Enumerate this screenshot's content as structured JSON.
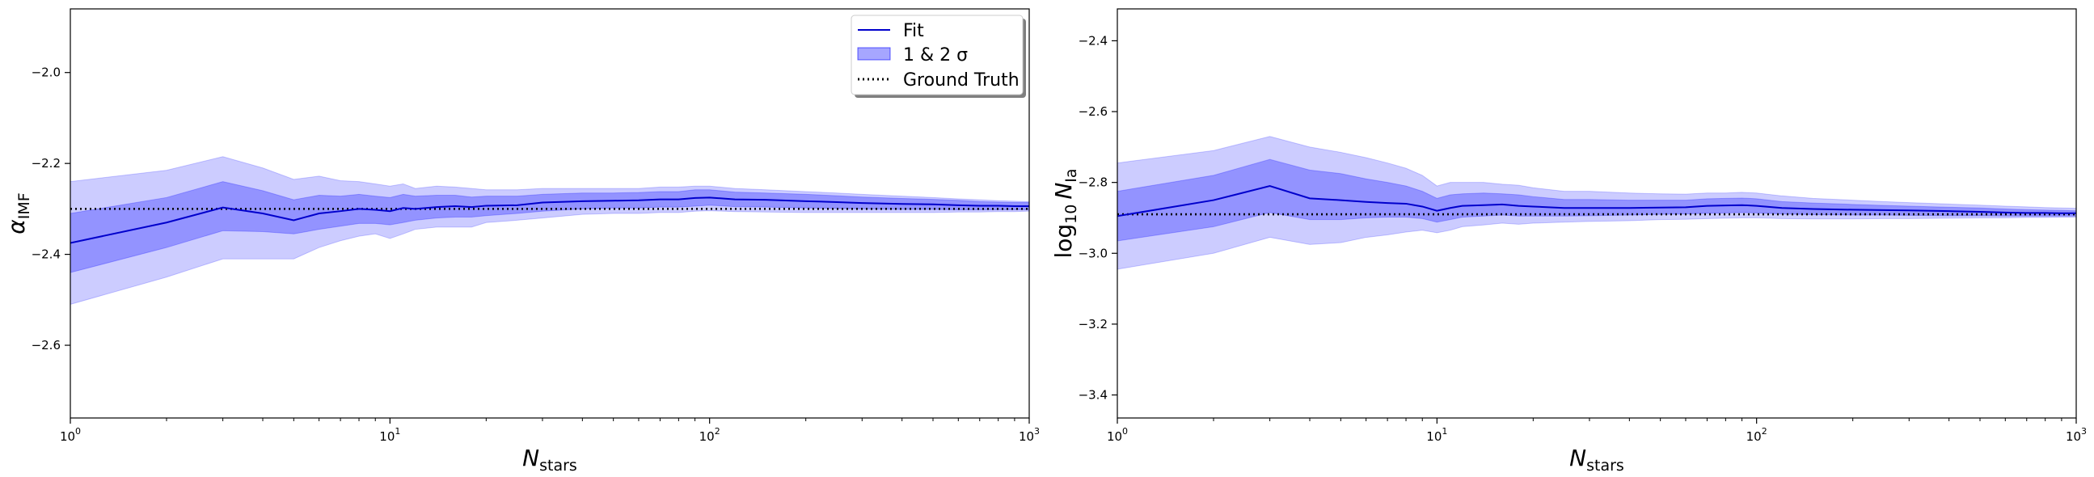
{
  "chart_data": [
    {
      "type": "line",
      "panel": "left",
      "xlabel": "N",
      "xlabel_sub": "stars",
      "ylabel": "α",
      "ylabel_sub": "IMF",
      "xscale": "log",
      "xlim": [
        1,
        1000
      ],
      "ylim": [
        -2.76,
        -1.86
      ],
      "xticks": [
        {
          "value": 1,
          "base": "10",
          "exp": "0"
        },
        {
          "value": 10,
          "base": "10",
          "exp": "1"
        },
        {
          "value": 100,
          "base": "10",
          "exp": "2"
        },
        {
          "value": 1000,
          "base": "10",
          "exp": "3"
        }
      ],
      "yticks": [
        {
          "value": -2.0,
          "label": "−2.0"
        },
        {
          "value": -2.2,
          "label": "−2.2"
        },
        {
          "value": -2.4,
          "label": "−2.4"
        },
        {
          "value": -2.6,
          "label": "−2.6"
        }
      ],
      "ground_truth": -2.3,
      "x": [
        1,
        2,
        3,
        4,
        5,
        6,
        7,
        8,
        9,
        10,
        11,
        12,
        14,
        16,
        18,
        20,
        25,
        30,
        40,
        50,
        60,
        70,
        80,
        90,
        100,
        120,
        150,
        200,
        250,
        300,
        400,
        500,
        600,
        700,
        800,
        900,
        1000
      ],
      "fit": [
        -2.375,
        -2.33,
        -2.297,
        -2.31,
        -2.325,
        -2.31,
        -2.305,
        -2.3,
        -2.302,
        -2.305,
        -2.298,
        -2.3,
        -2.296,
        -2.294,
        -2.296,
        -2.293,
        -2.292,
        -2.286,
        -2.283,
        -2.282,
        -2.281,
        -2.279,
        -2.279,
        -2.276,
        -2.275,
        -2.279,
        -2.28,
        -2.283,
        -2.285,
        -2.287,
        -2.289,
        -2.29,
        -2.292,
        -2.293,
        -2.293,
        -2.294,
        -2.294
      ],
      "sigma1_lower": [
        -2.44,
        -2.385,
        -2.348,
        -2.35,
        -2.355,
        -2.345,
        -2.338,
        -2.332,
        -2.332,
        -2.335,
        -2.33,
        -2.325,
        -2.32,
        -2.318,
        -2.318,
        -2.315,
        -2.31,
        -2.305,
        -2.3,
        -2.298,
        -2.298,
        -2.296,
        -2.296,
        -2.294,
        -2.292,
        -2.295,
        -2.296,
        -2.298,
        -2.299,
        -2.3,
        -2.301,
        -2.301,
        -2.302,
        -2.302,
        -2.302,
        -2.302,
        -2.302
      ],
      "sigma1_upper": [
        -2.31,
        -2.275,
        -2.24,
        -2.26,
        -2.28,
        -2.27,
        -2.272,
        -2.268,
        -2.272,
        -2.275,
        -2.268,
        -2.272,
        -2.27,
        -2.27,
        -2.274,
        -2.272,
        -2.272,
        -2.268,
        -2.265,
        -2.265,
        -2.264,
        -2.262,
        -2.262,
        -2.258,
        -2.258,
        -2.263,
        -2.265,
        -2.268,
        -2.271,
        -2.274,
        -2.277,
        -2.279,
        -2.281,
        -2.284,
        -2.285,
        -2.286,
        -2.286
      ],
      "sigma2_lower": [
        -2.51,
        -2.45,
        -2.41,
        -2.41,
        -2.41,
        -2.385,
        -2.37,
        -2.36,
        -2.355,
        -2.365,
        -2.355,
        -2.345,
        -2.34,
        -2.34,
        -2.34,
        -2.33,
        -2.325,
        -2.32,
        -2.312,
        -2.31,
        -2.31,
        -2.308,
        -2.308,
        -2.305,
        -2.304,
        -2.306,
        -2.307,
        -2.308,
        -2.308,
        -2.308,
        -2.308,
        -2.308,
        -2.307,
        -2.307,
        -2.306,
        -2.306,
        -2.305
      ],
      "sigma2_upper": [
        -2.24,
        -2.215,
        -2.185,
        -2.21,
        -2.235,
        -2.228,
        -2.238,
        -2.24,
        -2.245,
        -2.25,
        -2.245,
        -2.255,
        -2.25,
        -2.252,
        -2.255,
        -2.258,
        -2.258,
        -2.255,
        -2.255,
        -2.255,
        -2.255,
        -2.252,
        -2.252,
        -2.25,
        -2.25,
        -2.255,
        -2.258,
        -2.262,
        -2.265,
        -2.268,
        -2.272,
        -2.275,
        -2.278,
        -2.28,
        -2.282,
        -2.283,
        -2.284
      ],
      "legend": {
        "placement": "top-right",
        "entries": [
          {
            "label": "Fit",
            "kind": "line"
          },
          {
            "label": "1 & 2 σ",
            "kind": "patch"
          },
          {
            "label": "Ground Truth",
            "kind": "dotted"
          }
        ]
      },
      "colors": {
        "fit": "#0000cc",
        "band": "#0000ff",
        "truth": "#000000"
      }
    },
    {
      "type": "line",
      "panel": "right",
      "xlabel": "N",
      "xlabel_sub": "stars",
      "ylabel": "log",
      "ylabel_log_sub": "10",
      "ylabel_var": "N",
      "ylabel_sub": "Ia",
      "xscale": "log",
      "xlim": [
        1,
        1000
      ],
      "ylim": [
        -3.465,
        -2.31
      ],
      "xticks": [
        {
          "value": 1,
          "base": "10",
          "exp": "0"
        },
        {
          "value": 10,
          "base": "10",
          "exp": "1"
        },
        {
          "value": 100,
          "base": "10",
          "exp": "2"
        },
        {
          "value": 1000,
          "base": "10",
          "exp": "3"
        }
      ],
      "yticks": [
        {
          "value": -2.4,
          "label": "−2.4"
        },
        {
          "value": -2.6,
          "label": "−2.6"
        },
        {
          "value": -2.8,
          "label": "−2.8"
        },
        {
          "value": -3.0,
          "label": "−3.0"
        },
        {
          "value": -3.2,
          "label": "−3.2"
        },
        {
          "value": -3.4,
          "label": "−3.4"
        }
      ],
      "ground_truth": -2.89,
      "x": [
        1,
        2,
        3,
        4,
        5,
        6,
        7,
        8,
        9,
        10,
        11,
        12,
        14,
        16,
        18,
        20,
        25,
        30,
        40,
        50,
        60,
        70,
        80,
        90,
        100,
        120,
        150,
        200,
        250,
        300,
        400,
        500,
        600,
        700,
        800,
        900,
        1000
      ],
      "fit": [
        -2.895,
        -2.85,
        -2.81,
        -2.845,
        -2.85,
        -2.855,
        -2.858,
        -2.86,
        -2.868,
        -2.88,
        -2.872,
        -2.866,
        -2.864,
        -2.862,
        -2.866,
        -2.868,
        -2.872,
        -2.872,
        -2.872,
        -2.871,
        -2.87,
        -2.866,
        -2.865,
        -2.864,
        -2.866,
        -2.872,
        -2.875,
        -2.877,
        -2.878,
        -2.879,
        -2.881,
        -2.883,
        -2.885,
        -2.886,
        -2.886,
        -2.887,
        -2.887
      ],
      "sigma1_lower": [
        -2.965,
        -2.925,
        -2.885,
        -2.905,
        -2.905,
        -2.9,
        -2.898,
        -2.898,
        -2.902,
        -2.912,
        -2.905,
        -2.898,
        -2.895,
        -2.892,
        -2.895,
        -2.895,
        -2.895,
        -2.894,
        -2.892,
        -2.89,
        -2.889,
        -2.887,
        -2.886,
        -2.885,
        -2.886,
        -2.889,
        -2.891,
        -2.892,
        -2.892,
        -2.893,
        -2.894,
        -2.894,
        -2.895,
        -2.895,
        -2.895,
        -2.895,
        -2.895
      ],
      "sigma1_upper": [
        -2.825,
        -2.78,
        -2.735,
        -2.765,
        -2.775,
        -2.79,
        -2.8,
        -2.81,
        -2.825,
        -2.845,
        -2.835,
        -2.832,
        -2.83,
        -2.832,
        -2.835,
        -2.84,
        -2.848,
        -2.848,
        -2.85,
        -2.85,
        -2.85,
        -2.846,
        -2.845,
        -2.844,
        -2.846,
        -2.854,
        -2.858,
        -2.862,
        -2.865,
        -2.867,
        -2.87,
        -2.872,
        -2.875,
        -2.877,
        -2.878,
        -2.879,
        -2.88
      ],
      "sigma2_lower": [
        -3.045,
        -3.0,
        -2.955,
        -2.975,
        -2.97,
        -2.955,
        -2.948,
        -2.94,
        -2.935,
        -2.942,
        -2.935,
        -2.925,
        -2.92,
        -2.915,
        -2.918,
        -2.915,
        -2.912,
        -2.91,
        -2.908,
        -2.905,
        -2.904,
        -2.902,
        -2.901,
        -2.9,
        -2.9,
        -2.902,
        -2.903,
        -2.903,
        -2.902,
        -2.902,
        -2.901,
        -2.9,
        -2.9,
        -2.899,
        -2.899,
        -2.898,
        -2.898
      ],
      "sigma2_upper": [
        -2.745,
        -2.71,
        -2.67,
        -2.7,
        -2.715,
        -2.73,
        -2.745,
        -2.76,
        -2.78,
        -2.81,
        -2.8,
        -2.8,
        -2.8,
        -2.805,
        -2.808,
        -2.815,
        -2.825,
        -2.825,
        -2.83,
        -2.832,
        -2.833,
        -2.83,
        -2.83,
        -2.828,
        -2.83,
        -2.838,
        -2.845,
        -2.85,
        -2.854,
        -2.857,
        -2.861,
        -2.864,
        -2.867,
        -2.869,
        -2.871,
        -2.872,
        -2.873
      ],
      "colors": {
        "fit": "#0000cc",
        "band": "#0000ff",
        "truth": "#000000"
      }
    }
  ]
}
